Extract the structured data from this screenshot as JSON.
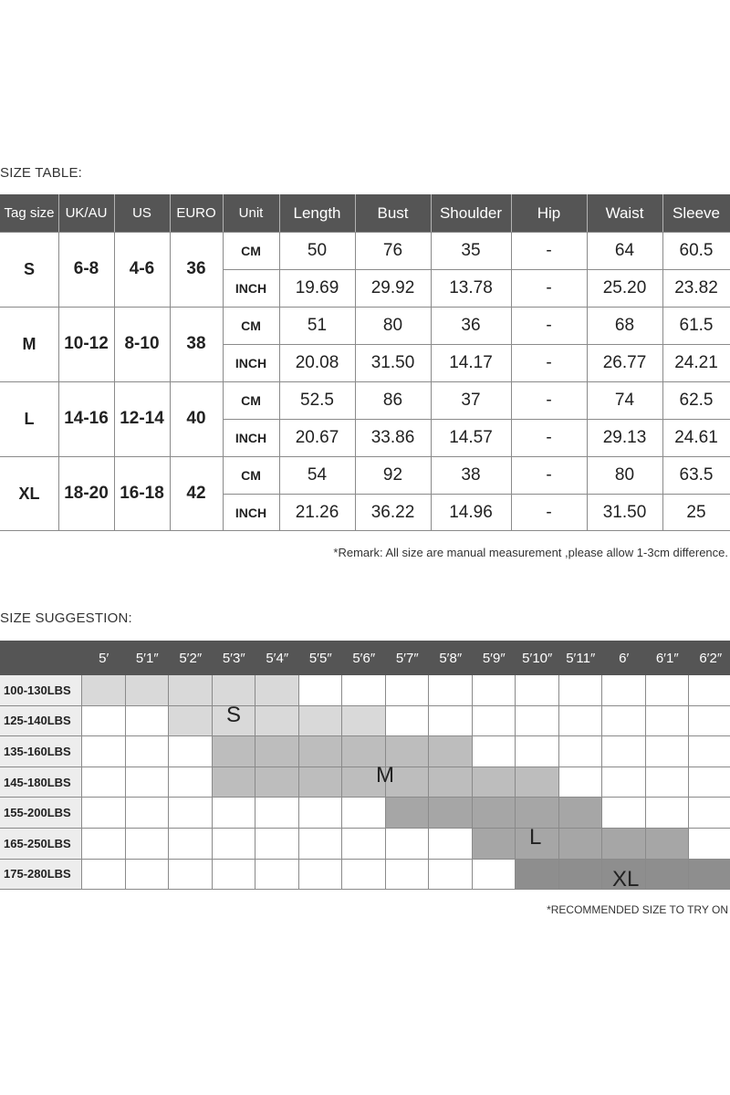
{
  "size_table": {
    "title": "SIZE TABLE:",
    "headers": [
      "Tag size",
      "UK/AU",
      "US",
      "EURO",
      "Unit",
      "Length",
      "Bust",
      "Shoulder",
      "Hip",
      "Waist",
      "Sleeve"
    ],
    "sizes": [
      {
        "tag": "S",
        "uk_au": "6-8",
        "us": "4-6",
        "euro": "36",
        "rows": [
          {
            "unit": "CM",
            "values": [
              "50",
              "76",
              "35",
              "-",
              "64",
              "60.5"
            ]
          },
          {
            "unit": "INCH",
            "values": [
              "19.69",
              "29.92",
              "13.78",
              "-",
              "25.20",
              "23.82"
            ]
          }
        ]
      },
      {
        "tag": "M",
        "uk_au": "10-12",
        "us": "8-10",
        "euro": "38",
        "rows": [
          {
            "unit": "CM",
            "values": [
              "51",
              "80",
              "36",
              "-",
              "68",
              "61.5"
            ]
          },
          {
            "unit": "INCH",
            "values": [
              "20.08",
              "31.50",
              "14.17",
              "-",
              "26.77",
              "24.21"
            ]
          }
        ]
      },
      {
        "tag": "L",
        "uk_au": "14-16",
        "us": "12-14",
        "euro": "40",
        "rows": [
          {
            "unit": "CM",
            "values": [
              "52.5",
              "86",
              "37",
              "-",
              "74",
              "62.5"
            ]
          },
          {
            "unit": "INCH",
            "values": [
              "20.67",
              "33.86",
              "14.57",
              "-",
              "29.13",
              "24.61"
            ]
          }
        ]
      },
      {
        "tag": "XL",
        "uk_au": "18-20",
        "us": "16-18",
        "euro": "42",
        "rows": [
          {
            "unit": "CM",
            "values": [
              "54",
              "92",
              "38",
              "-",
              "80",
              "63.5"
            ]
          },
          {
            "unit": "INCH",
            "values": [
              "21.26",
              "36.22",
              "14.96",
              "-",
              "31.50",
              "25"
            ]
          }
        ]
      }
    ],
    "remark": "*Remark: All size are manual measurement ,please allow 1-3cm difference."
  },
  "size_suggestion": {
    "title": "SIZE SUGGESTION:",
    "heights": [
      "5′",
      "5′1″",
      "5′2″",
      "5′3″",
      "5′4″",
      "5′5″",
      "5′6″",
      "5′7″",
      "5′8″",
      "5′9″",
      "5′10″",
      "5′11″",
      "6′",
      "6′1″",
      "6′2″"
    ],
    "weights": [
      "100-130LBS",
      "125-140LBS",
      "135-160LBS",
      "145-180LBS",
      "155-200LBS",
      "165-250LBS",
      "175-280LBS"
    ],
    "zones": [
      {
        "size": "S",
        "color": "#d9d9d9",
        "cells": [
          [
            0,
            0
          ],
          [
            0,
            1
          ],
          [
            0,
            2
          ],
          [
            0,
            3
          ],
          [
            0,
            4
          ],
          [
            1,
            2
          ],
          [
            1,
            3
          ],
          [
            1,
            4
          ],
          [
            1,
            5
          ],
          [
            1,
            6
          ]
        ]
      },
      {
        "size": "M",
        "color": "#bdbdbd",
        "cells": [
          [
            2,
            3
          ],
          [
            2,
            4
          ],
          [
            2,
            5
          ],
          [
            2,
            6
          ],
          [
            2,
            7
          ],
          [
            2,
            8
          ],
          [
            3,
            3
          ],
          [
            3,
            4
          ],
          [
            3,
            5
          ],
          [
            3,
            6
          ],
          [
            3,
            7
          ],
          [
            3,
            8
          ],
          [
            3,
            9
          ],
          [
            3,
            10
          ]
        ]
      },
      {
        "size": "L",
        "color": "#a6a6a6",
        "cells": [
          [
            4,
            7
          ],
          [
            4,
            8
          ],
          [
            4,
            9
          ],
          [
            4,
            10
          ],
          [
            4,
            11
          ],
          [
            5,
            9
          ],
          [
            5,
            10
          ],
          [
            5,
            11
          ],
          [
            5,
            12
          ],
          [
            5,
            13
          ]
        ]
      },
      {
        "size": "XL",
        "color": "#8e8e8e",
        "cells": [
          [
            6,
            10
          ],
          [
            6,
            11
          ],
          [
            6,
            12
          ],
          [
            6,
            13
          ],
          [
            6,
            14
          ]
        ]
      }
    ],
    "note": "*RECOMMENDED SIZE TO TRY ON"
  }
}
